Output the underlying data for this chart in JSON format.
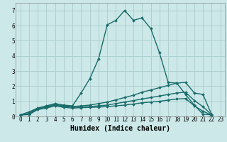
{
  "xlabel": "Humidex (Indice chaleur)",
  "ylabel": "",
  "background_color": "#cce8e8",
  "grid_color": "#aacccc",
  "line_color": "#1a6b6b",
  "x_values": [
    0,
    1,
    2,
    3,
    4,
    5,
    6,
    7,
    8,
    9,
    10,
    11,
    12,
    13,
    14,
    15,
    16,
    17,
    18,
    19,
    20,
    21,
    22,
    23
  ],
  "series": [
    [
      0.1,
      0.3,
      0.55,
      0.7,
      0.85,
      0.75,
      0.7,
      1.55,
      2.5,
      3.8,
      6.05,
      6.35,
      7.0,
      6.35,
      6.5,
      5.8,
      4.2,
      2.25,
      2.2,
      1.45,
      0.75,
      0.15,
      0.1,
      null
    ],
    [
      0.1,
      0.2,
      0.55,
      0.65,
      0.8,
      0.7,
      0.65,
      0.7,
      0.75,
      0.85,
      0.95,
      1.1,
      1.25,
      1.4,
      1.6,
      1.75,
      1.9,
      2.05,
      2.2,
      2.25,
      1.55,
      1.45,
      0.12,
      null
    ],
    [
      0.1,
      0.15,
      0.5,
      0.6,
      0.75,
      0.65,
      0.6,
      0.62,
      0.65,
      0.7,
      0.75,
      0.85,
      0.95,
      1.05,
      1.15,
      1.25,
      1.35,
      1.45,
      1.55,
      1.6,
      1.05,
      0.65,
      0.1,
      null
    ],
    [
      0.1,
      0.12,
      0.45,
      0.55,
      0.7,
      0.6,
      0.55,
      0.58,
      0.6,
      0.62,
      0.65,
      0.7,
      0.75,
      0.82,
      0.9,
      0.95,
      1.0,
      1.08,
      1.15,
      1.18,
      0.7,
      0.35,
      0.08,
      null
    ]
  ],
  "ylim": [
    0,
    7.5
  ],
  "xlim": [
    -0.5,
    23.5
  ],
  "yticks": [
    0,
    1,
    2,
    3,
    4,
    5,
    6,
    7
  ],
  "xticks": [
    0,
    1,
    2,
    3,
    4,
    5,
    6,
    7,
    8,
    9,
    10,
    11,
    12,
    13,
    14,
    15,
    16,
    17,
    18,
    19,
    20,
    21,
    22,
    23
  ],
  "marker": "D",
  "marker_size": 2,
  "line_width": 1.0,
  "xlabel_fontsize": 7,
  "tick_fontsize": 5.5
}
